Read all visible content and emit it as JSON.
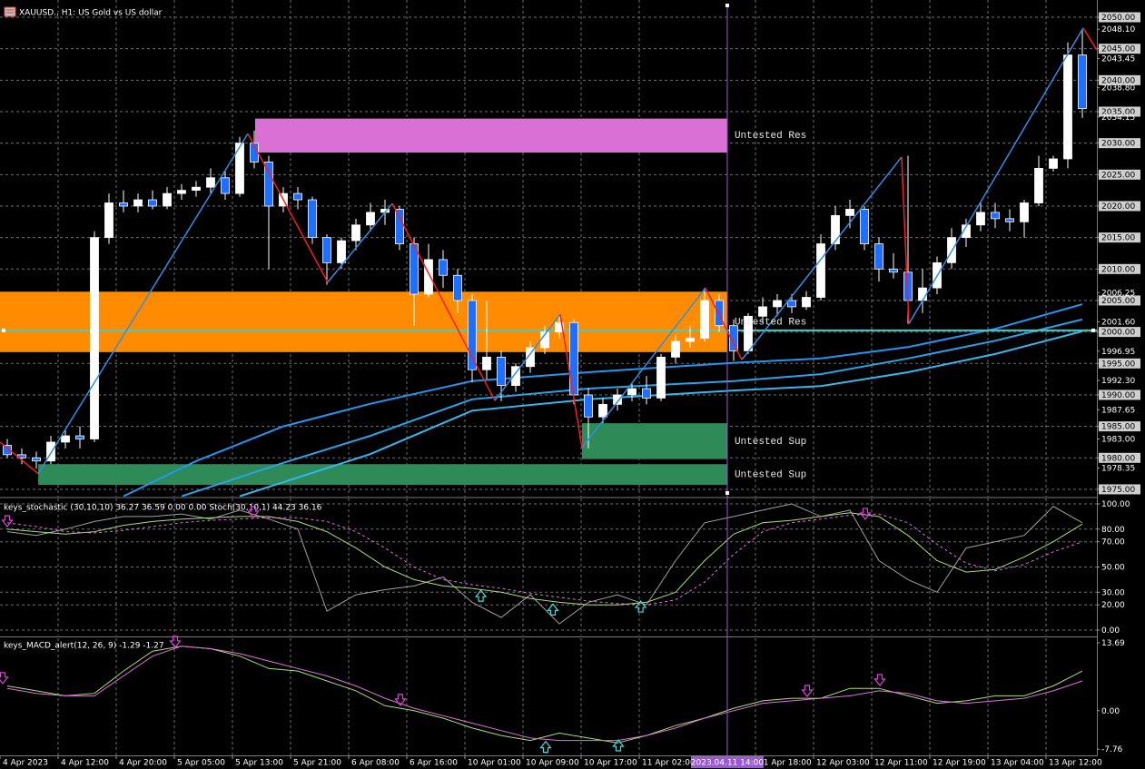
{
  "chart_data": [
    {
      "type": "candlestick",
      "title": "XAUUSD., H1: US Gold vs US dollar",
      "xlim": [
        -0.5,
        75
      ],
      "ylim": [
        1973.84,
        2052.74
      ],
      "grid": true,
      "boxed_ticks": true,
      "bull_color": "#ffffff",
      "bear_color": "#1e6fff",
      "wick_color": "#ffffff",
      "open": [
        1982,
        1980.5,
        1980,
        1979.5,
        1982.5,
        1983.5,
        1983,
        2015,
        2020.5,
        2020,
        2021,
        2020,
        2022,
        2022.5,
        2023,
        2024.5,
        2022,
        2030,
        2027,
        2020,
        2022,
        2021,
        2015,
        2011,
        2014.5,
        2017,
        2019,
        2019.5,
        2014,
        2006,
        2011.5,
        2009,
        2005,
        1994,
        1996,
        1991.5,
        1994.5,
        1997.5,
        2000,
        2001.5,
        1990,
        1986.5,
        1988.5,
        1990,
        1991,
        1989.5,
        1996,
        1998.5,
        1999,
        2005,
        2001,
        1997,
        2002.5,
        2004,
        2005,
        2004,
        2005.5,
        2014,
        2018.5,
        2019.5,
        2014,
        2010,
        2009.5,
        2005,
        2007,
        2011,
        2015,
        2017,
        2019,
        2018,
        2017.5,
        2020.5,
        2026,
        2027.5,
        2044
      ],
      "high": [
        1983,
        1981.5,
        1981,
        1983.5,
        1984.5,
        1985,
        2016,
        2022,
        2022.5,
        2022,
        2022.5,
        2023,
        2023.5,
        2024,
        2026,
        2025.5,
        2031,
        2032,
        2028,
        2023,
        2023,
        2021.5,
        2015.5,
        2015,
        2018,
        2020.5,
        2021,
        2020,
        2015,
        2014,
        2013,
        2010,
        2006,
        2005,
        1997,
        1995,
        1998.5,
        2001,
        2002.5,
        2002,
        1991,
        1989.5,
        1991,
        1992,
        1993,
        1996.5,
        1999.5,
        2001,
        2007,
        2006,
        2002,
        2003,
        2005.5,
        2006,
        2006,
        2006.5,
        2015.5,
        2020,
        2021,
        2020,
        2015,
        2012.5,
        2028,
        2010,
        2012,
        2016.5,
        2018,
        2020.5,
        2020.5,
        2019.5,
        2021,
        2028,
        2028,
        2046,
        2048.1
      ],
      "low": [
        1980,
        1979,
        1978.3,
        1979,
        1981.5,
        1981.5,
        1982.5,
        2014,
        2019,
        2019,
        2019.5,
        2019.5,
        2021,
        2021.5,
        2022,
        2021,
        2021.5,
        2026,
        2010,
        2019,
        2019.5,
        2014,
        2007.5,
        2010,
        2013,
        2016,
        2017,
        2013,
        2001,
        2005.5,
        2007,
        2003,
        1992,
        1992.5,
        1989,
        1990.5,
        1993.5,
        1996.5,
        1999,
        1988.5,
        1981.5,
        1985.5,
        1987.5,
        1989,
        1988.5,
        1989,
        1995,
        1997.5,
        1998.5,
        2000,
        1995.4,
        1996.5,
        2001.5,
        2002.5,
        2003,
        2003.5,
        2005,
        2013,
        2016.5,
        2013,
        2008,
        2008.5,
        2001.3,
        2003,
        2006,
        2010,
        2013.5,
        2016,
        2016.5,
        2016,
        2015,
        2020,
        2025.5,
        2026,
        2034
      ],
      "close": [
        1980.5,
        1980,
        1979.5,
        1982.5,
        1983.5,
        1983,
        2015,
        2020.5,
        2020,
        2021,
        2020,
        2022,
        2022.5,
        2023,
        2024.5,
        2022,
        2030,
        2027,
        2020,
        2022,
        2021,
        2015,
        2011,
        2014.5,
        2017,
        2019,
        2019.5,
        2014,
        2006,
        2011.5,
        2009,
        2005,
        1994,
        1996,
        1991.5,
        1994.5,
        1997.5,
        2000,
        2001.5,
        1990,
        1986.5,
        1988.5,
        1990,
        1991,
        1989.5,
        1996,
        1998.5,
        1999,
        2005,
        2001,
        1997,
        2002.5,
        2004,
        2005,
        2004,
        2005.5,
        2014,
        2018.5,
        2019.5,
        2014,
        2010,
        2009.5,
        2005,
        2007,
        2011,
        2015,
        2017,
        2019,
        2018,
        2017.5,
        2020.5,
        2026,
        2027.5,
        2044,
        2035.5
      ],
      "yticks": [
        {
          "value": 2050,
          "label": "2050.00"
        },
        {
          "value": 2045,
          "label": "2045.00"
        },
        {
          "value": 2040,
          "label": "2040.00"
        },
        {
          "value": 2035,
          "label": "2035.00"
        },
        {
          "value": 2030,
          "label": "2030.00"
        },
        {
          "value": 2025,
          "label": "2025.00"
        },
        {
          "value": 2020,
          "label": "2020.00"
        },
        {
          "value": 2015,
          "label": "2015.00"
        },
        {
          "value": 2010,
          "label": "2010.00"
        },
        {
          "value": 2005,
          "label": "2005.00"
        },
        {
          "value": 2000,
          "label": "2000.00"
        },
        {
          "value": 1995,
          "label": "1995.00"
        },
        {
          "value": 1990,
          "label": "1990.00"
        },
        {
          "value": 1985,
          "label": "1985.00"
        },
        {
          "value": 1980,
          "label": "1980.00"
        },
        {
          "value": 1975,
          "label": "1975.00"
        }
      ],
      "axis_labels": [
        {
          "value": 2048.1,
          "label": "2048.10"
        },
        {
          "value": 2043.45,
          "label": "2043.45"
        },
        {
          "value": 2038.8,
          "label": "2038.80"
        },
        {
          "value": 2034.15,
          "label": "2034.15"
        },
        {
          "value": 2006.25,
          "label": "2006.25"
        },
        {
          "value": 2001.6,
          "label": "2001.60"
        },
        {
          "value": 1996.95,
          "label": "1996.95"
        },
        {
          "value": 1992.3,
          "label": "1992.30"
        },
        {
          "value": 1987.65,
          "label": "1987.65"
        },
        {
          "value": 1983,
          "label": "1983.00"
        },
        {
          "value": 1978.35,
          "label": "1978.35"
        }
      ],
      "xticks": [
        {
          "value": -0.5,
          "label": "4 Apr 2023"
        },
        {
          "value": 3.5,
          "label": "4 Apr 12:00"
        },
        {
          "value": 7.5,
          "label": "4 Apr 20:00"
        },
        {
          "value": 11.5,
          "label": "5 Apr 05:00"
        },
        {
          "value": 15.5,
          "label": "5 Apr 13:00"
        },
        {
          "value": 19.5,
          "label": "5 Apr 21:00"
        },
        {
          "value": 23.5,
          "label": "6 Apr 08:00"
        },
        {
          "value": 27.5,
          "label": "6 Apr 16:00"
        },
        {
          "value": 31.5,
          "label": "10 Apr 01:00"
        },
        {
          "value": 35.5,
          "label": "10 Apr 09:00"
        },
        {
          "value": 39.5,
          "label": "10 Apr 17:00"
        },
        {
          "value": 43.5,
          "label": "11 Apr 02:00"
        },
        {
          "value": 51.5,
          "label": "11 Apr 18:00"
        },
        {
          "value": 55.5,
          "label": "12 Apr 03:00"
        },
        {
          "value": 59.5,
          "label": "12 Apr 11:00"
        },
        {
          "value": 63.5,
          "label": "12 Apr 19:00"
        },
        {
          "value": 67.5,
          "label": "13 Apr 04:00"
        },
        {
          "value": 71.5,
          "label": "13 Apr 12:00"
        }
      ],
      "zones": [
        {
          "label": "Untested Res",
          "color": "#da70d6",
          "x": [
            17.06,
            49.56
          ],
          "range": [
            2028.5,
            2033.9
          ]
        },
        {
          "label": "Untested Res",
          "color": "#ff8c00",
          "x": [
            -0.5,
            49.56
          ],
          "range": [
            1996.8,
            2006.4
          ]
        },
        {
          "label": "Untested Sup",
          "color": "#2e8b57",
          "x": [
            39.56,
            49.56
          ],
          "range": [
            1979.8,
            1985.5
          ]
        },
        {
          "label": "Untested Sup",
          "color": "#2e8b57",
          "x": [
            2.13,
            49.56
          ],
          "range": [
            1975.7,
            1979
          ]
        }
      ],
      "moving_averages": [
        {
          "color": "#2196f3",
          "x": [
            8,
            13,
            19,
            25,
            32,
            40,
            50,
            56,
            62,
            68,
            74
          ],
          "values": [
            1973.9,
            1979.5,
            1985,
            1988.6,
            1992.2,
            1993.6,
            1995.1,
            1995.8,
            1997.6,
            2000.5,
            2004.4
          ]
        },
        {
          "color": "#29a3e8",
          "x": [
            12,
            19,
            25,
            32,
            40,
            50,
            56,
            62,
            68,
            74
          ],
          "values": [
            1973.9,
            1979.2,
            1983.5,
            1989.3,
            1991,
            1992.2,
            1993.3,
            1995.8,
            1998.6,
            2002
          ]
        },
        {
          "color": "#35b6f0",
          "x": [
            16,
            25,
            32,
            40,
            50,
            56,
            62,
            68,
            74
          ],
          "values": [
            1973.9,
            1980.6,
            1987.5,
            1989.3,
            1990.7,
            1991.4,
            1993.6,
            1996.5,
            2000.1
          ]
        }
      ],
      "zigzag": {
        "up_color": "#2e8fe6",
        "down_color": "#ff1a1a",
        "x": [
          -0.5,
          2.13,
          16.56,
          22.06,
          26.5,
          33.56,
          38.06,
          39.56,
          48.06,
          50.56,
          61.56,
          62.06,
          74.06,
          75
        ],
        "values": [
          1982.5,
          1977.5,
          2031.5,
          2007.9,
          2020.4,
          1989.1,
          2002.8,
          1981.6,
          2007,
          1995.6,
          2027.8,
          2001.3,
          2048.3,
          2044.8
        ]
      },
      "hline": {
        "value": 2000.25,
        "color": "#3fd0c8"
      },
      "crosshair": {
        "x": 49.56,
        "label": "2023.04.11 14:00",
        "color": "#9b59d6"
      }
    },
    {
      "type": "line",
      "title": "keys_stochastic (30,10,10) 36.27 36.59 0.00 0.00 Stoch(30,10,1) 44.23 36.16",
      "xlim": [
        -0.5,
        75
      ],
      "ylim": [
        -4.3,
        104.3
      ],
      "grid": true,
      "yticks": [
        {
          "value": 100,
          "label": "100.00"
        },
        {
          "value": 80,
          "label": "80.00"
        },
        {
          "value": 70,
          "label": "70.00"
        },
        {
          "value": 50,
          "label": "50.00"
        },
        {
          "value": 30,
          "label": "30.00"
        },
        {
          "value": 20,
          "label": "20.00"
        },
        {
          "value": 0,
          "label": "0.00"
        }
      ],
      "x": [
        0,
        2,
        4,
        6,
        8,
        10,
        12,
        14,
        16,
        18,
        20,
        22,
        24,
        26,
        28,
        30,
        32,
        34,
        36,
        38,
        40,
        42,
        44,
        46,
        48,
        50,
        52,
        54,
        56,
        58,
        60,
        62,
        64,
        66,
        68,
        70,
        72,
        74
      ],
      "series": [
        {
          "color": "#a0a0a0",
          "dash": false,
          "values": [
            78,
            75,
            80,
            86,
            90,
            90,
            92,
            88,
            95,
            88,
            80,
            15,
            28,
            32,
            35,
            42,
            22,
            10,
            28,
            5,
            22,
            28,
            20,
            55,
            85,
            90,
            95,
            100,
            90,
            95,
            55,
            40,
            30,
            65,
            70,
            75,
            98,
            85
          ]
        },
        {
          "color": "#a8e070",
          "dash": false,
          "values": [
            80,
            78,
            76,
            78,
            83,
            86,
            88,
            89,
            90,
            90,
            86,
            78,
            65,
            50,
            40,
            35,
            33,
            30,
            25,
            22,
            20,
            20,
            22,
            30,
            55,
            76,
            85,
            87,
            90,
            93,
            90,
            75,
            55,
            46,
            48,
            58,
            70,
            84
          ]
        },
        {
          "color": "#e070e0",
          "dash": true,
          "values": [
            85,
            82,
            78,
            77,
            79,
            82,
            85,
            87,
            88,
            89,
            89,
            86,
            78,
            65,
            50,
            40,
            36,
            33,
            29,
            26,
            23,
            21,
            20,
            24,
            38,
            60,
            78,
            85,
            88,
            91,
            92,
            85,
            68,
            53,
            47,
            52,
            62,
            70
          ]
        }
      ],
      "arrows": {
        "down_color": "#e040e0",
        "up_color": "#40e0e0",
        "down": {
          "x": [
            0,
            16.94,
            59.06
          ],
          "values": [
            85.6,
            92.8,
            91.4
          ]
        },
        "up": {
          "x": [
            32.6,
            37.56,
            43.6
          ],
          "values": [
            28,
            17,
            19.4
          ]
        }
      }
    },
    {
      "type": "line",
      "title": "keys_MACD_alert(12, 26, 9) -1.29 -1.27",
      "xlim": [
        -0.5,
        75
      ],
      "ylim": [
        -9,
        14.6
      ],
      "grid": false,
      "yticks": [
        {
          "value": 13.69,
          "label": "13.69"
        },
        {
          "value": 0,
          "label": "0.00"
        },
        {
          "value": -7.76,
          "label": "-7.76"
        }
      ],
      "x": [
        0,
        2,
        4,
        6,
        8,
        10,
        12,
        14,
        16,
        18,
        20,
        22,
        24,
        26,
        28,
        30,
        32,
        34,
        36,
        38,
        40,
        42,
        44,
        46,
        48,
        50,
        52,
        54,
        56,
        58,
        60,
        62,
        64,
        66,
        68,
        70,
        72,
        74
      ],
      "series": [
        {
          "color": "#a8e070",
          "dash": false,
          "values": [
            5,
            4,
            3,
            3.5,
            8,
            12,
            13,
            12.5,
            11,
            8.5,
            8,
            6,
            4,
            1,
            0,
            -1.5,
            -3.5,
            -5,
            -6,
            -4.5,
            -5.5,
            -6.5,
            -5,
            -3,
            -1.5,
            0.5,
            2,
            2.5,
            2.5,
            4.5,
            4.5,
            3,
            1.5,
            2,
            3,
            3,
            5,
            8
          ]
        },
        {
          "color": "#e070e0",
          "dash": false,
          "values": [
            4.5,
            3.5,
            3,
            3,
            7,
            11,
            13,
            12.5,
            11.5,
            10,
            8.5,
            7,
            5,
            2.5,
            0.5,
            -1,
            -2.5,
            -4,
            -5.5,
            -6,
            -6,
            -6,
            -5,
            -3.5,
            -1.5,
            0,
            1.5,
            2,
            2.5,
            3,
            4,
            3.5,
            2,
            1.5,
            2,
            2.5,
            4,
            6
          ]
        }
      ],
      "arrows": {
        "down_color": "#e040e0",
        "up_color": "#40e0e0",
        "down": {
          "x": [
            -0.31,
            11.56,
            27.06,
            55.06,
            60.06
          ],
          "values": [
            6.4,
            13.7,
            2,
            3.8,
            6
          ]
        },
        "up": {
          "x": [
            37.06,
            42.06
          ],
          "values": [
            -7.1,
            -6.8
          ]
        }
      }
    }
  ]
}
